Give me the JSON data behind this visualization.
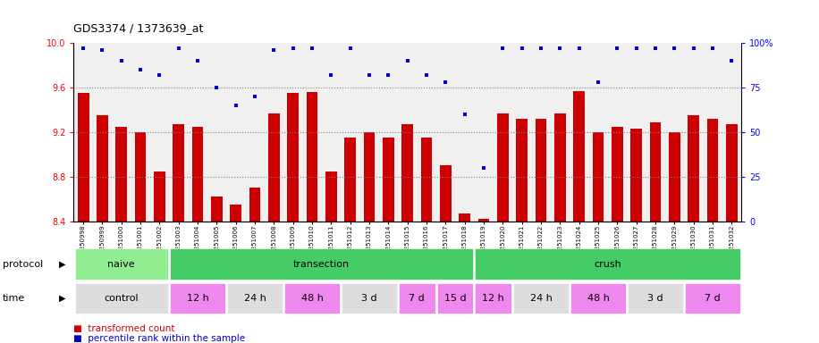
{
  "title": "GDS3374 / 1373639_at",
  "samples": [
    "GSM250998",
    "GSM250999",
    "GSM251000",
    "GSM251001",
    "GSM251002",
    "GSM251003",
    "GSM251004",
    "GSM251005",
    "GSM251006",
    "GSM251007",
    "GSM251008",
    "GSM251009",
    "GSM251010",
    "GSM251011",
    "GSM251012",
    "GSM251013",
    "GSM251014",
    "GSM251015",
    "GSM251016",
    "GSM251017",
    "GSM251018",
    "GSM251019",
    "GSM251020",
    "GSM251021",
    "GSM251022",
    "GSM251023",
    "GSM251024",
    "GSM251025",
    "GSM251026",
    "GSM251027",
    "GSM251028",
    "GSM251029",
    "GSM251030",
    "GSM251031",
    "GSM251032"
  ],
  "bar_values": [
    9.55,
    9.35,
    9.25,
    9.2,
    8.85,
    9.27,
    9.25,
    8.62,
    8.55,
    8.7,
    9.37,
    9.55,
    9.56,
    8.85,
    9.15,
    9.2,
    9.15,
    9.27,
    9.15,
    8.9,
    8.47,
    8.42,
    9.37,
    9.32,
    9.32,
    9.37,
    9.57,
    9.2,
    9.25,
    9.23,
    9.29,
    9.2,
    9.35,
    9.32,
    9.27
  ],
  "percentile_values": [
    97,
    96,
    90,
    85,
    82,
    97,
    90,
    75,
    65,
    70,
    96,
    97,
    97,
    82,
    97,
    82,
    82,
    90,
    82,
    78,
    60,
    30,
    97,
    97,
    97,
    97,
    97,
    78,
    97,
    97,
    97,
    97,
    97,
    97,
    90
  ],
  "bar_color": "#cc0000",
  "dot_color": "#0000cc",
  "ylim_left": [
    8.4,
    10.0
  ],
  "ylim_right": [
    0,
    100
  ],
  "yticks_left": [
    8.4,
    8.8,
    9.2,
    9.6,
    10.0
  ],
  "yticks_right": [
    0,
    25,
    50,
    75,
    100
  ],
  "grid_values": [
    8.8,
    9.2,
    9.6
  ],
  "protocol_groups": [
    {
      "label": "naive",
      "start": 0,
      "end": 5,
      "color": "#90ee90"
    },
    {
      "label": "transection",
      "start": 5,
      "end": 21,
      "color": "#44cc66"
    },
    {
      "label": "crush",
      "start": 21,
      "end": 35,
      "color": "#44cc66"
    }
  ],
  "time_groups": [
    {
      "label": "control",
      "start": 0,
      "end": 5,
      "color": "#dddddd"
    },
    {
      "label": "12 h",
      "start": 5,
      "end": 8,
      "color": "#ee88ee"
    },
    {
      "label": "24 h",
      "start": 8,
      "end": 11,
      "color": "#dddddd"
    },
    {
      "label": "48 h",
      "start": 11,
      "end": 14,
      "color": "#ee88ee"
    },
    {
      "label": "3 d",
      "start": 14,
      "end": 17,
      "color": "#dddddd"
    },
    {
      "label": "7 d",
      "start": 17,
      "end": 19,
      "color": "#ee88ee"
    },
    {
      "label": "15 d",
      "start": 19,
      "end": 21,
      "color": "#ee88ee"
    },
    {
      "label": "12 h",
      "start": 21,
      "end": 23,
      "color": "#ee88ee"
    },
    {
      "label": "24 h",
      "start": 23,
      "end": 26,
      "color": "#dddddd"
    },
    {
      "label": "48 h",
      "start": 26,
      "end": 29,
      "color": "#ee88ee"
    },
    {
      "label": "3 d",
      "start": 29,
      "end": 32,
      "color": "#dddddd"
    },
    {
      "label": "7 d",
      "start": 32,
      "end": 35,
      "color": "#ee88ee"
    }
  ],
  "bg_color": "#ffffff",
  "plot_bg": "#f0f0f0"
}
